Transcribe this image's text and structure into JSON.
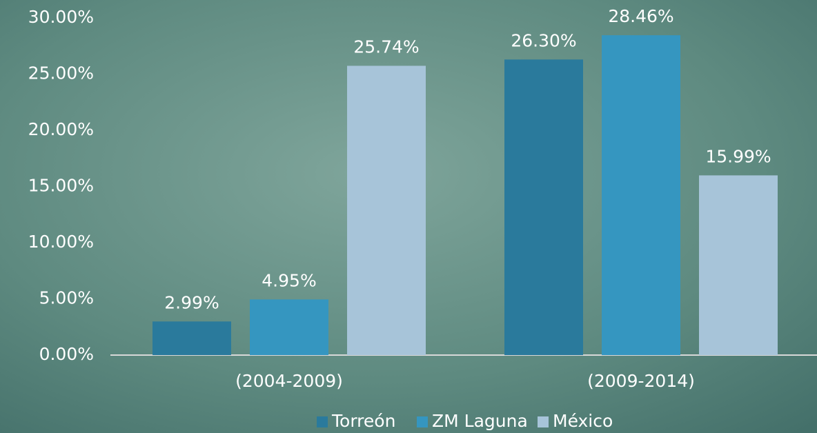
{
  "chart_data": {
    "type": "bar",
    "categories": [
      "(2004-2009)",
      "(2009-2014)"
    ],
    "series": [
      {
        "name": "Torreón",
        "color": "#2a7a9c",
        "values": [
          2.99,
          26.3
        ],
        "value_labels": [
          "2.99%",
          "26.30%"
        ]
      },
      {
        "name": "ZM Laguna",
        "color": "#3596c0",
        "values": [
          4.95,
          28.46
        ],
        "value_labels": [
          "4.95%",
          "28.46%"
        ]
      },
      {
        "name": "México",
        "color": "#a7c4d9",
        "values": [
          25.74,
          15.99
        ],
        "value_labels": [
          "25.74%",
          "15.99%"
        ]
      }
    ],
    "ylim": [
      0,
      30
    ],
    "yticks": [
      {
        "value": 0,
        "label": "0.00%"
      },
      {
        "value": 5,
        "label": "5.00%"
      },
      {
        "value": 10,
        "label": "10.00%"
      },
      {
        "value": 15,
        "label": "15.00%"
      },
      {
        "value": 20,
        "label": "20.00%"
      },
      {
        "value": 25,
        "label": "25.00%"
      },
      {
        "value": 30,
        "label": "30.00%"
      }
    ],
    "legend": "bottom"
  }
}
